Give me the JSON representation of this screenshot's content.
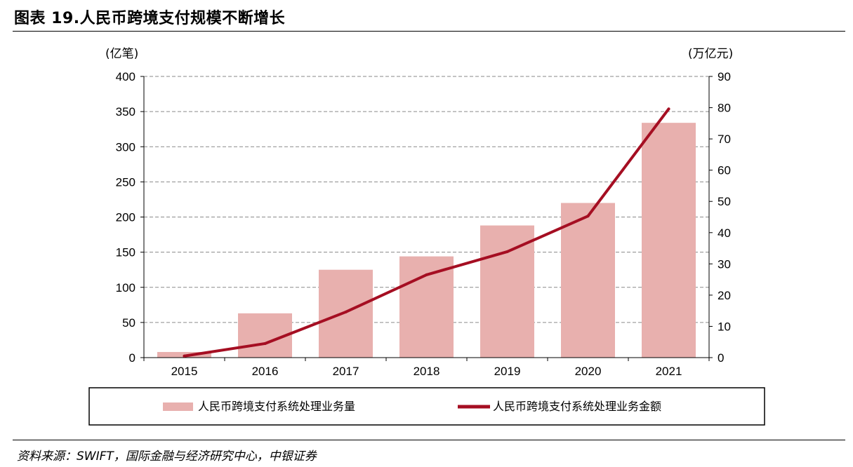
{
  "header": {
    "title": "图表 19.人民币跨境支付规模不断增长"
  },
  "footer": {
    "source": "资料来源：SWIFT，国际金融与经济研究中心，中银证券"
  },
  "chart_data": {
    "type": "bar",
    "categories": [
      "2015",
      "2016",
      "2017",
      "2018",
      "2019",
      "2020",
      "2021"
    ],
    "series": [
      {
        "name": "人民币跨境支付系统处理业务量",
        "type": "bar",
        "axis": "left",
        "color": "#e8b0ae",
        "values": [
          8,
          63,
          125,
          144,
          188,
          220,
          334
        ]
      },
      {
        "name": "人民币跨境支付系统处理业务金额",
        "type": "line",
        "axis": "right",
        "color": "#a50e22",
        "values": [
          0.5,
          4.5,
          14.6,
          26.5,
          33.9,
          45.3,
          79.6
        ]
      }
    ],
    "yleft": {
      "unit": "(亿笔)",
      "ylim": [
        0,
        400
      ],
      "ticks": [
        0,
        50,
        100,
        150,
        200,
        250,
        300,
        350,
        400
      ]
    },
    "yright": {
      "unit": "(万亿元)",
      "ylim": [
        0,
        90
      ],
      "ticks": [
        0,
        10,
        20,
        30,
        40,
        50,
        60,
        70,
        80,
        90
      ]
    },
    "grid": "horizontal-dashed",
    "legend_position": "bottom"
  }
}
